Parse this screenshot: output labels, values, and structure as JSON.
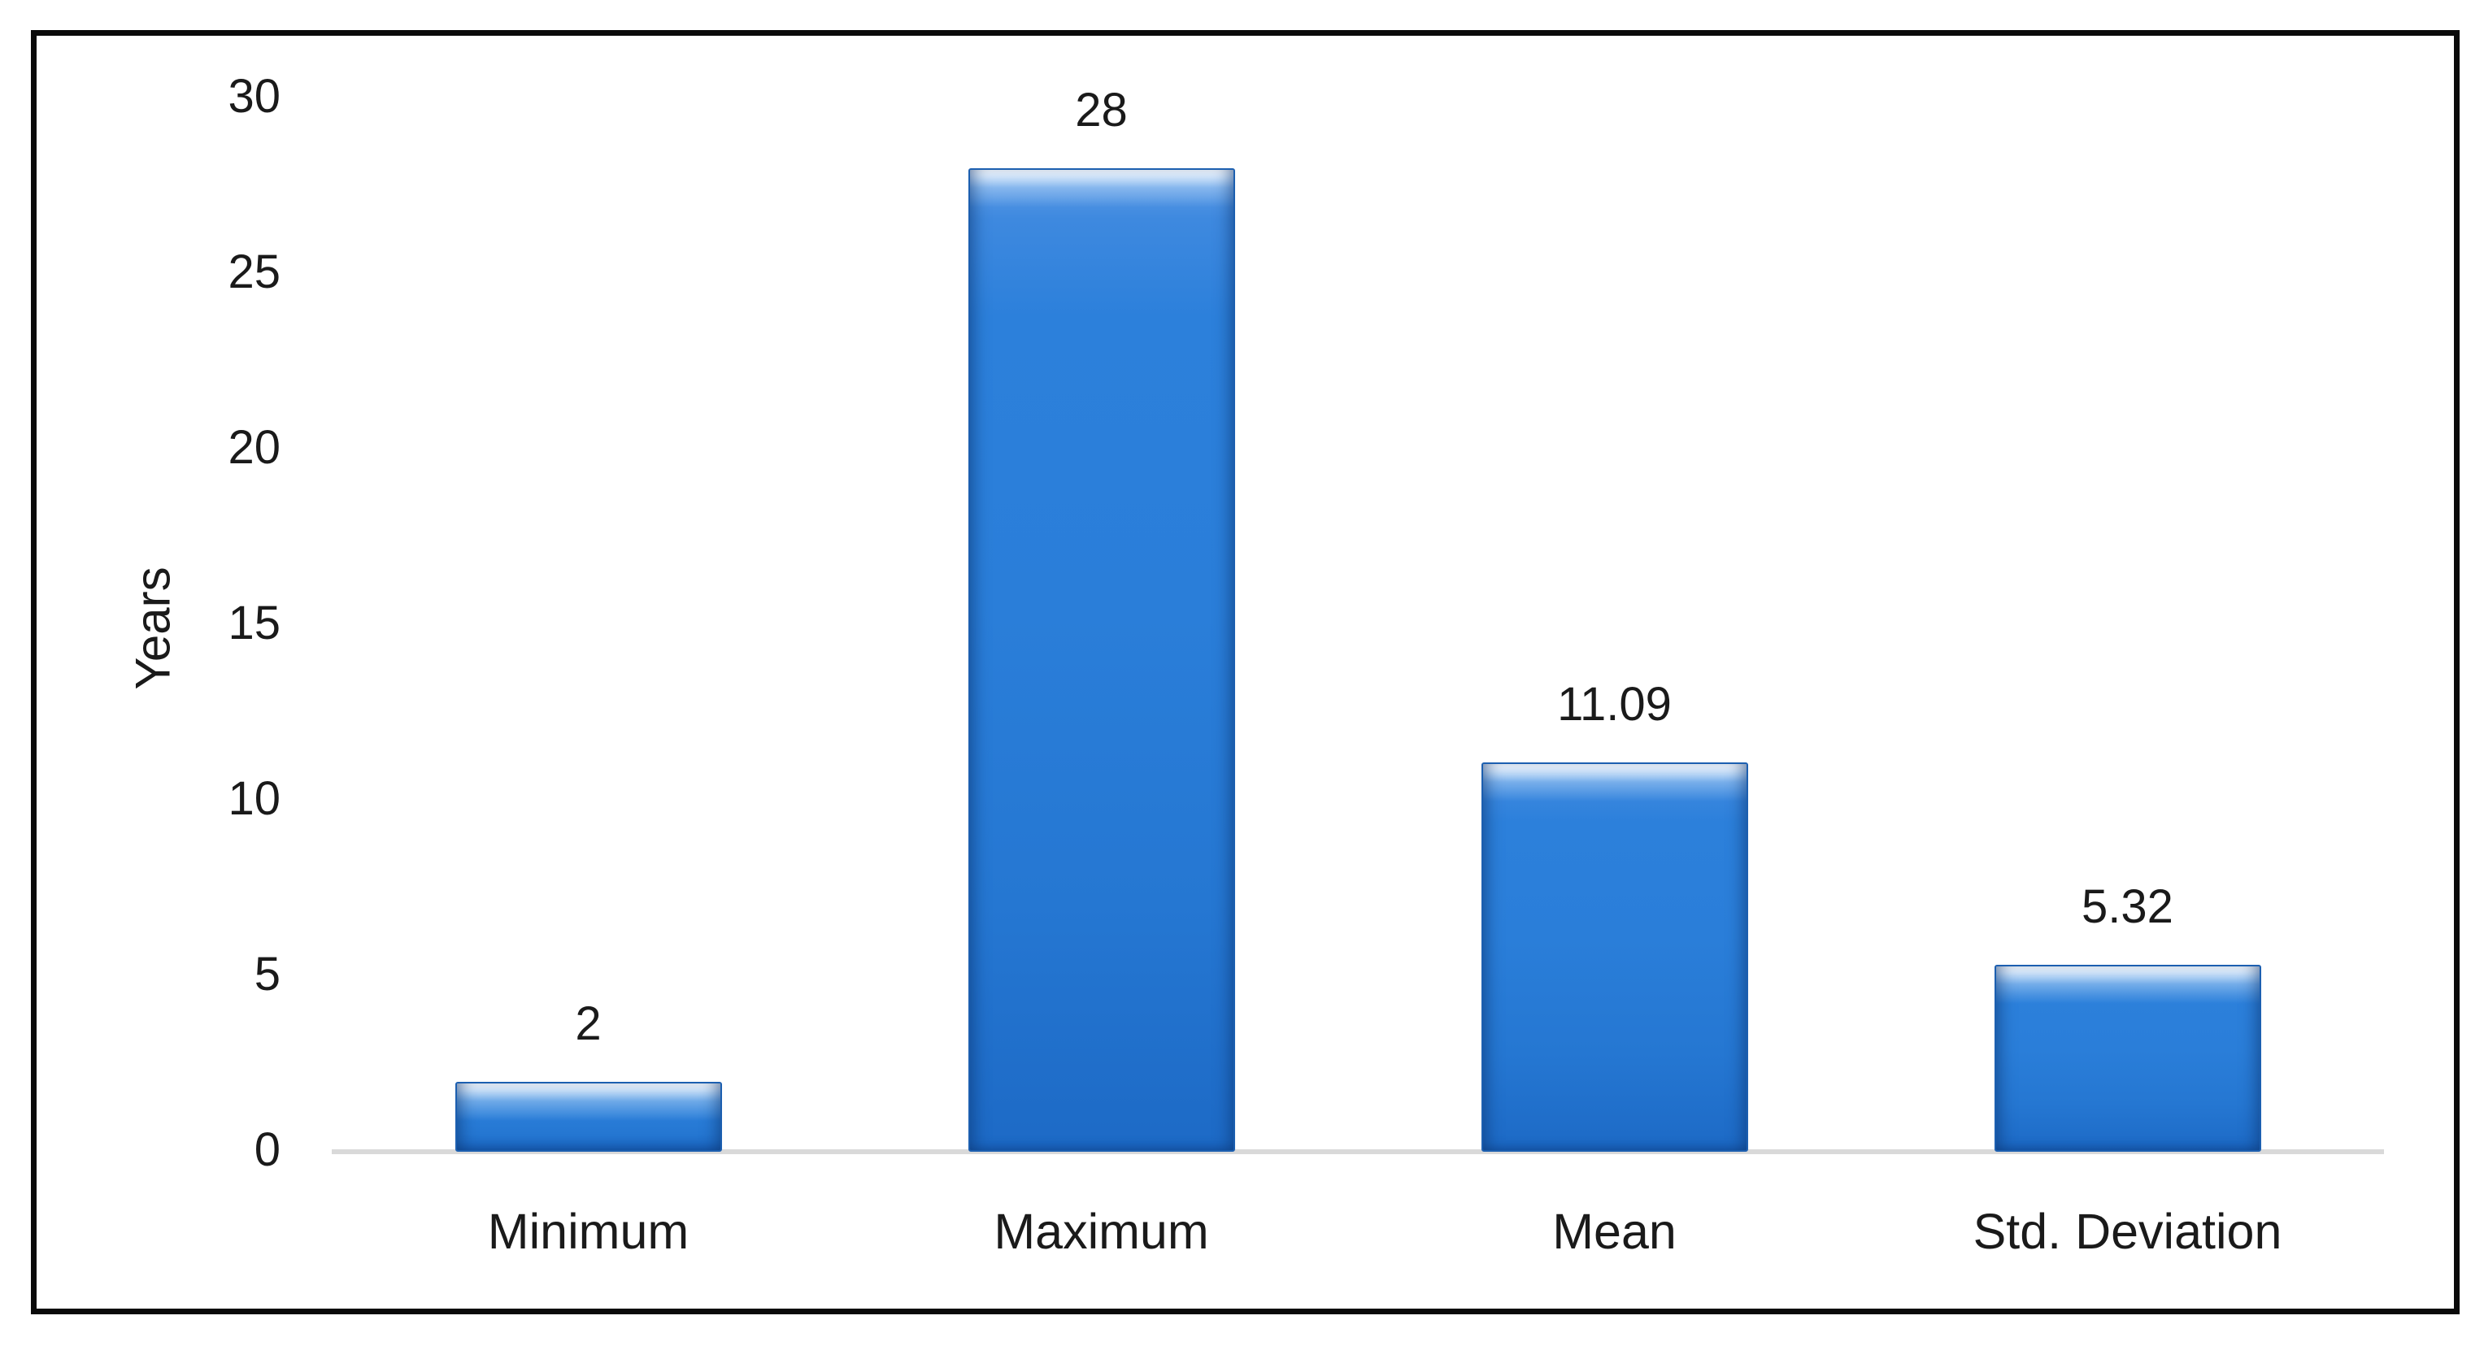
{
  "chart_data": {
    "type": "bar",
    "title": "",
    "xlabel": "",
    "ylabel": "Years",
    "categories": [
      "Minimum",
      "Maximum",
      "Mean",
      "Std. Deviation"
    ],
    "values": [
      2,
      28,
      11.09,
      5.32
    ],
    "data_labels": [
      "2",
      "28",
      "11.09",
      "5.32"
    ],
    "yticks": [
      0,
      5,
      10,
      15,
      20,
      25,
      30
    ],
    "ylim": [
      0,
      30
    ],
    "grid": false,
    "legend": "none",
    "colors": {
      "bar_fill": "#2a7ed9",
      "bar_border": "#1c5fb0",
      "axis_line": "#d9d9d9",
      "text": "#1a1a1a",
      "outer_frame": "#0a0a0a",
      "background": "#ffffff"
    }
  }
}
